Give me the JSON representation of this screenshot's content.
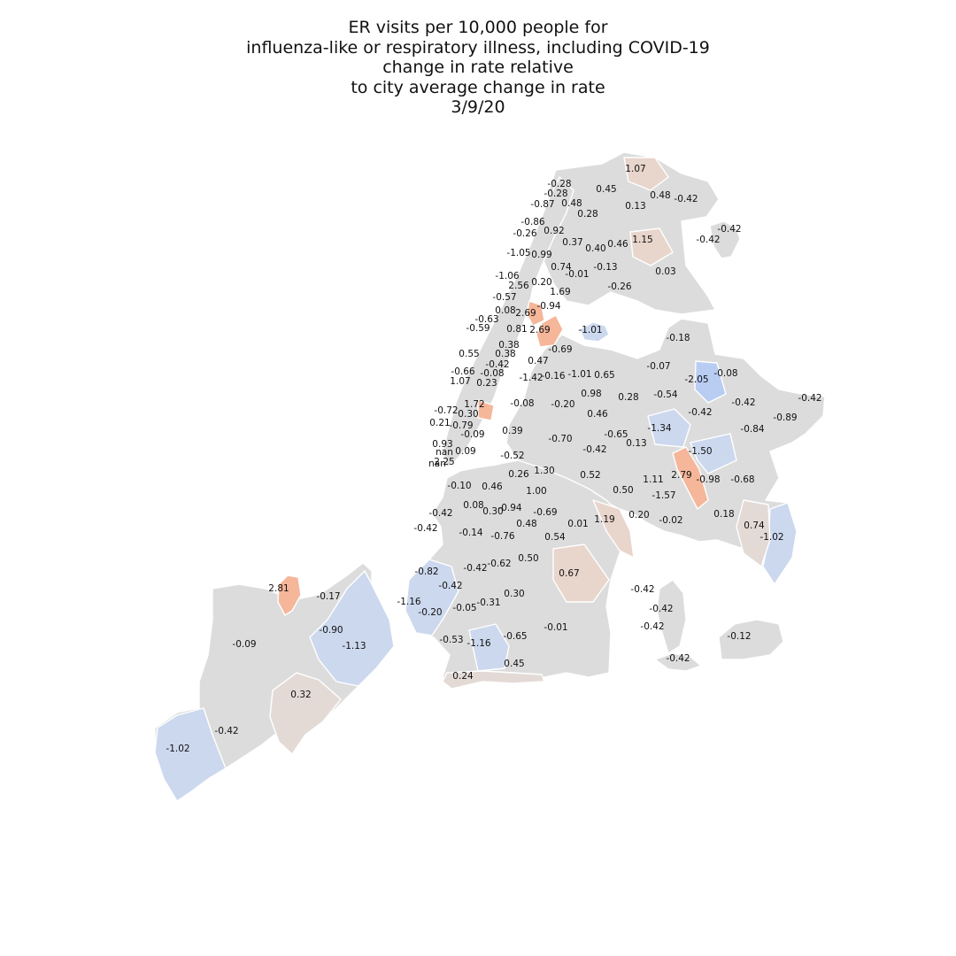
{
  "title_lines": [
    "ER visits per 10,000 people for",
    "influenza-like or respiratory illness, including COVID-19",
    "change in rate relative",
    "to city average change in rate",
    "3/9/20"
  ],
  "colors": {
    "neutral": "#dcdcdc",
    "high": "#f5b69a",
    "low": "#b9cdf3",
    "background": "#ffffff"
  },
  "zones": [
    {
      "label": "1.07",
      "value": 1.07
    },
    {
      "label": "-0.28",
      "value": -0.28
    },
    {
      "label": "0.45",
      "value": 0.45
    },
    {
      "label": "-0.28",
      "value": -0.28
    },
    {
      "label": "0.48",
      "value": 0.48
    },
    {
      "label": "-0.87",
      "value": -0.87
    },
    {
      "label": "0.48",
      "value": 0.48
    },
    {
      "label": "0.13",
      "value": 0.13
    },
    {
      "label": "-0.42",
      "value": -0.42
    },
    {
      "label": "0.28",
      "value": 0.28
    },
    {
      "label": "-0.86",
      "value": -0.86
    },
    {
      "label": "-0.26",
      "value": -0.26
    },
    {
      "label": "0.92",
      "value": 0.92
    },
    {
      "label": "-0.42",
      "value": -0.42
    },
    {
      "label": "-0.42",
      "value": -0.42
    },
    {
      "label": "0.37",
      "value": 0.37
    },
    {
      "label": "0.40",
      "value": 0.4
    },
    {
      "label": "0.46",
      "value": 0.46
    },
    {
      "label": "1.15",
      "value": 1.15
    },
    {
      "label": "-1.05",
      "value": -1.05
    },
    {
      "label": "0.99",
      "value": 0.99
    },
    {
      "label": "0.74",
      "value": 0.74
    },
    {
      "label": "-0.01",
      "value": -0.01
    },
    {
      "label": "-0.13",
      "value": -0.13
    },
    {
      "label": "0.03",
      "value": 0.03
    },
    {
      "label": "-1.06",
      "value": -1.06
    },
    {
      "label": "2.56",
      "value": 2.56
    },
    {
      "label": "0.20",
      "value": 0.2
    },
    {
      "label": "-0.26",
      "value": -0.26
    },
    {
      "label": "1.69",
      "value": 1.69
    },
    {
      "label": "-0.57",
      "value": -0.57
    },
    {
      "label": "-0.94",
      "value": -0.94
    },
    {
      "label": "0.08",
      "value": 0.08
    },
    {
      "label": "2.69",
      "value": 2.69
    },
    {
      "label": "-0.63",
      "value": -0.63
    },
    {
      "label": "-0.59",
      "value": -0.59
    },
    {
      "label": "0.81",
      "value": 0.81
    },
    {
      "label": "2.69",
      "value": 2.69
    },
    {
      "label": "-1.01",
      "value": -1.01
    },
    {
      "label": "-0.18",
      "value": -0.18
    },
    {
      "label": "0.38",
      "value": 0.38
    },
    {
      "label": "-0.69",
      "value": -0.69
    },
    {
      "label": "0.55",
      "value": 0.55
    },
    {
      "label": "0.38",
      "value": 0.38
    },
    {
      "label": "-0.42",
      "value": -0.42
    },
    {
      "label": "0.47",
      "value": 0.47
    },
    {
      "label": "-0.07",
      "value": -0.07
    },
    {
      "label": "-0.66",
      "value": -0.66
    },
    {
      "label": "-0.08",
      "value": -0.08
    },
    {
      "label": "-1.01",
      "value": -1.01
    },
    {
      "label": "0.65",
      "value": 0.65
    },
    {
      "label": "-1.42",
      "value": -1.42
    },
    {
      "label": "-0.16",
      "value": -0.16
    },
    {
      "label": "-2.05",
      "value": -2.05
    },
    {
      "label": "-0.08",
      "value": -0.08
    },
    {
      "label": "1.07",
      "value": 1.07
    },
    {
      "label": "0.23",
      "value": 0.23
    },
    {
      "label": "0.98",
      "value": 0.98
    },
    {
      "label": "0.28",
      "value": 0.28
    },
    {
      "label": "-0.54",
      "value": -0.54
    },
    {
      "label": "-0.42",
      "value": -0.42
    },
    {
      "label": "1.72",
      "value": 1.72
    },
    {
      "label": "-0.08",
      "value": -0.08
    },
    {
      "label": "-0.20",
      "value": -0.2
    },
    {
      "label": "-0.42",
      "value": -0.42
    },
    {
      "label": "-0.72",
      "value": -0.72
    },
    {
      "label": "0.30",
      "value": 0.3
    },
    {
      "label": "0.46",
      "value": 0.46
    },
    {
      "label": "-0.42",
      "value": -0.42
    },
    {
      "label": "-0.89",
      "value": -0.89
    },
    {
      "label": "0.21",
      "value": 0.21
    },
    {
      "label": "-0.79",
      "value": -0.79
    },
    {
      "label": "-1.34",
      "value": -1.34
    },
    {
      "label": "-0.84",
      "value": -0.84
    },
    {
      "label": "0.39",
      "value": 0.39
    },
    {
      "label": "-0.65",
      "value": -0.65
    },
    {
      "label": "-0.09",
      "value": -0.09
    },
    {
      "label": "-0.70",
      "value": -0.7
    },
    {
      "label": "0.13",
      "value": 0.13
    },
    {
      "label": "0.93",
      "value": 0.93
    },
    {
      "label": "-1.50",
      "value": -1.5
    },
    {
      "label": "nan",
      "value": null
    },
    {
      "label": "0.09",
      "value": 0.09
    },
    {
      "label": "-0.42",
      "value": -0.42
    },
    {
      "label": "-0.52",
      "value": -0.52
    },
    {
      "label": "nan",
      "value": null
    },
    {
      "label": "2.25",
      "value": 2.25
    },
    {
      "label": "1.30",
      "value": 1.3
    },
    {
      "label": "0.26",
      "value": 0.26
    },
    {
      "label": "0.52",
      "value": 0.52
    },
    {
      "label": "2.79",
      "value": 2.79
    },
    {
      "label": "-0.68",
      "value": -0.68
    },
    {
      "label": "1.11",
      "value": 1.11
    },
    {
      "label": "-0.98",
      "value": -0.98
    },
    {
      "label": "-0.10",
      "value": -0.1
    },
    {
      "label": "0.46",
      "value": 0.46
    },
    {
      "label": "1.00",
      "value": 1.0
    },
    {
      "label": "0.50",
      "value": 0.5
    },
    {
      "label": "-1.57",
      "value": -1.57
    },
    {
      "label": "0.08",
      "value": 0.08
    },
    {
      "label": "-0.94",
      "value": -0.94
    },
    {
      "label": "0.30",
      "value": 0.3
    },
    {
      "label": "-0.69",
      "value": -0.69
    },
    {
      "label": "-0.42",
      "value": -0.42
    },
    {
      "label": "0.20",
      "value": 0.2
    },
    {
      "label": "1.19",
      "value": 1.19
    },
    {
      "label": "0.18",
      "value": 0.18
    },
    {
      "label": "-0.02",
      "value": -0.02
    },
    {
      "label": "0.74",
      "value": 0.74
    },
    {
      "label": "-0.42",
      "value": -0.42
    },
    {
      "label": "0.48",
      "value": 0.48
    },
    {
      "label": "0.01",
      "value": 0.01
    },
    {
      "label": "-0.14",
      "value": -0.14
    },
    {
      "label": "-0.76",
      "value": -0.76
    },
    {
      "label": "0.54",
      "value": 0.54
    },
    {
      "label": "-1.02",
      "value": -1.02
    },
    {
      "label": "0.50",
      "value": 0.5
    },
    {
      "label": "-0.42",
      "value": -0.42
    },
    {
      "label": "-0.62",
      "value": -0.62
    },
    {
      "label": "-0.82",
      "value": -0.82
    },
    {
      "label": "0.67",
      "value": 0.67
    },
    {
      "label": "-0.42",
      "value": -0.42
    },
    {
      "label": "2.81",
      "value": 2.81
    },
    {
      "label": "-0.17",
      "value": -0.17
    },
    {
      "label": "0.30",
      "value": 0.3
    },
    {
      "label": "-0.42",
      "value": -0.42
    },
    {
      "label": "-1.16",
      "value": -1.16
    },
    {
      "label": "-0.20",
      "value": -0.2
    },
    {
      "label": "-0.05",
      "value": -0.05
    },
    {
      "label": "-0.31",
      "value": -0.31
    },
    {
      "label": "-0.42",
      "value": -0.42
    },
    {
      "label": "-0.90",
      "value": -0.9
    },
    {
      "label": "-0.09",
      "value": -0.09
    },
    {
      "label": "-1.13",
      "value": -1.13
    },
    {
      "label": "-0.53",
      "value": -0.53
    },
    {
      "label": "-1.16",
      "value": -1.16
    },
    {
      "label": "-0.65",
      "value": -0.65
    },
    {
      "label": "-0.01",
      "value": -0.01
    },
    {
      "label": "-0.42",
      "value": -0.42
    },
    {
      "label": "-0.12",
      "value": -0.12
    },
    {
      "label": "0.45",
      "value": 0.45
    },
    {
      "label": "-0.42",
      "value": -0.42
    },
    {
      "label": "0.24",
      "value": 0.24
    },
    {
      "label": "0.32",
      "value": 0.32
    },
    {
      "label": "-0.42",
      "value": -0.42
    },
    {
      "label": "-1.02",
      "value": -1.02
    }
  ]
}
